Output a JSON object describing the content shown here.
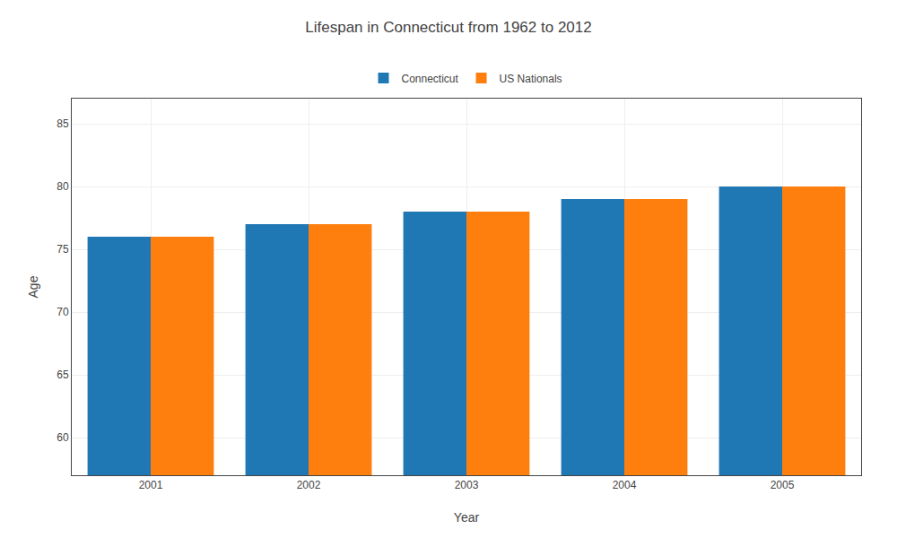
{
  "chart_data": {
    "type": "bar",
    "title": "Lifespan in Connecticut from 1962 to 2012",
    "xlabel": "Year",
    "ylabel": "Age",
    "categories": [
      "2001",
      "2002",
      "2003",
      "2004",
      "2005"
    ],
    "series": [
      {
        "name": "Connecticut",
        "values": [
          76,
          77,
          78,
          79,
          80
        ]
      },
      {
        "name": "US Nationals",
        "values": [
          76,
          77,
          78,
          79,
          80
        ]
      }
    ],
    "ylim": [
      57,
      87
    ],
    "yticks": [
      60,
      65,
      70,
      75,
      80,
      85
    ],
    "grid": true,
    "legend": "top"
  }
}
